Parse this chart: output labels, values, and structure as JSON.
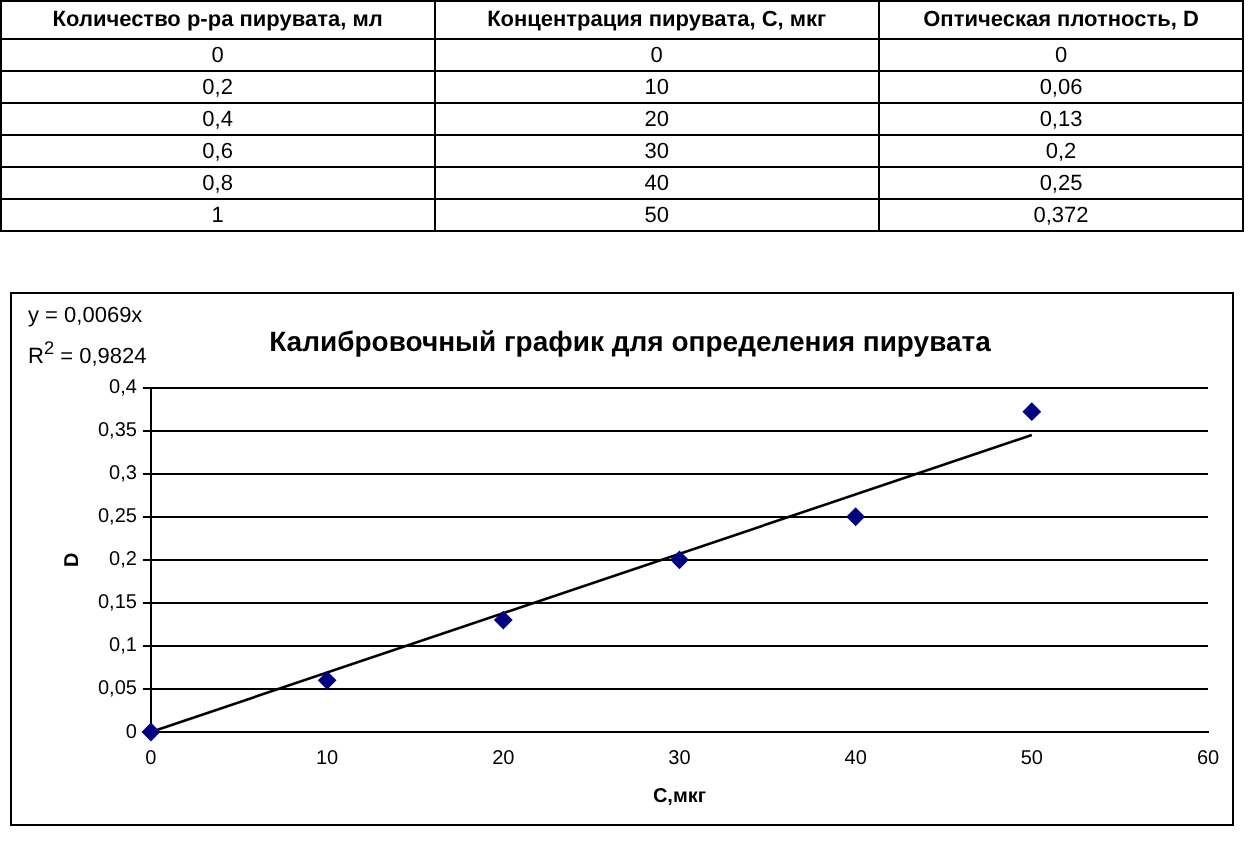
{
  "chart_data": {
    "type": "scatter",
    "title": "Калибровочный график для определения пирувата",
    "xlabel": "С,мкг",
    "ylabel": "D",
    "x": [
      0,
      10,
      20,
      30,
      40,
      50
    ],
    "series": [
      {
        "color": "#000080",
        "marker": "diamond",
        "values": [
          0,
          0.06,
          0.13,
          0.2,
          0.25,
          0.372
        ]
      },
      {
        "type": "line",
        "color": "#000000",
        "marker": "none",
        "x": [
          0,
          50
        ],
        "values": [
          0,
          0.345
        ]
      }
    ],
    "xlim": [
      0,
      60
    ],
    "xticks": [
      0,
      10,
      20,
      30,
      40,
      50,
      60
    ],
    "ylim": [
      0,
      0.4
    ],
    "yticks": [
      0,
      {
        "value": 0.05,
        "label": "0,05"
      },
      {
        "value": 0.1,
        "label": "0,1"
      },
      {
        "value": 0.15,
        "label": "0,15"
      },
      {
        "value": 0.2,
        "label": "0,2"
      },
      {
        "value": 0.25,
        "label": "0,25"
      },
      {
        "value": 0.3,
        "label": "0,3"
      },
      {
        "value": 0.35,
        "label": "0,35"
      },
      {
        "value": 0.4,
        "label": "0,4"
      }
    ],
    "grid": "y",
    "legend": false,
    "annotations": [
      "y = 0,0069x",
      "R$^{2}$ = 0,9824",
      "Количество р-ра пирувата, мл",
      "Концентрация пирувата, С, мкг",
      "Оптическая плотность, D",
      "0",
      "0",
      "0",
      "0,2",
      "10",
      "0,06",
      "0,4",
      "20",
      "0,13",
      "0,6",
      "30",
      "0,2",
      "0,8",
      "40",
      "0,25",
      "1",
      "50",
      "0,372"
    ]
  }
}
